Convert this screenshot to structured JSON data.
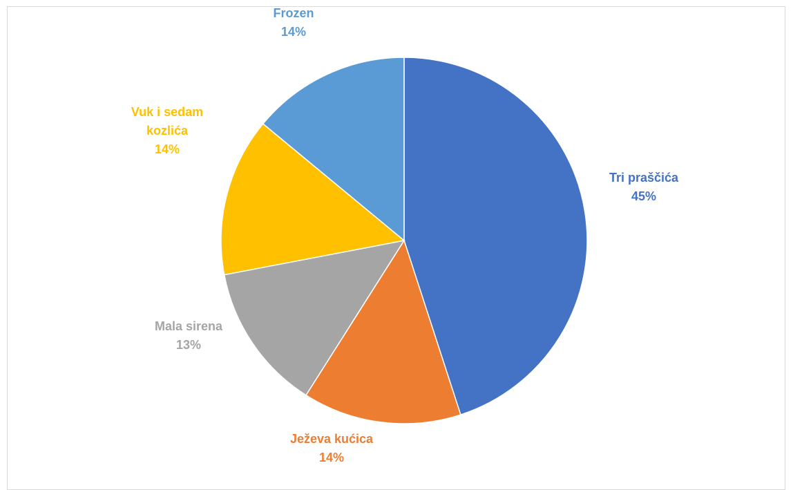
{
  "chart_data": {
    "type": "pie",
    "title": "",
    "legend": "none",
    "start_angle_deg": 0,
    "direction": "clockwise",
    "slices": [
      {
        "label": "Tri praščića",
        "value": 45,
        "display": "45%",
        "color": "#4472C4"
      },
      {
        "label": "Ježeva kućica",
        "value": 14,
        "display": "14%",
        "color": "#ED7D31"
      },
      {
        "label": "Mala sirena",
        "value": 13,
        "display": "13%",
        "color": "#A5A5A5"
      },
      {
        "label": "Vuk i sedam kozlića",
        "value": 14,
        "display": "14%",
        "color": "#FFC000"
      },
      {
        "label": "Frozen",
        "value": 14,
        "display": "14%",
        "color": "#5B9BD5"
      }
    ]
  }
}
